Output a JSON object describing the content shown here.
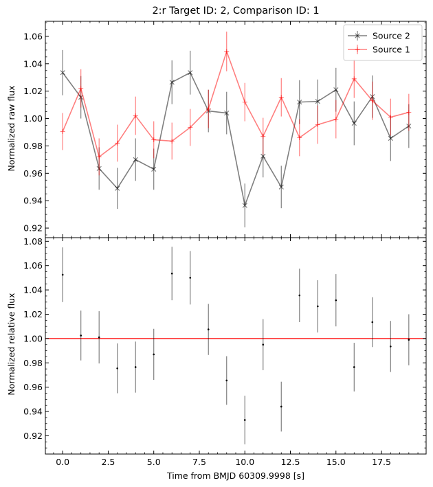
{
  "chart_data": {
    "type": "line",
    "title": "2:r Target ID: 2, Comparison ID: 1",
    "xlabel": "Time from BMJD 60309.9998 [s]",
    "xlim": [
      -0.95,
      19.95
    ],
    "x_ticks": [
      0.0,
      2.5,
      5.0,
      7.5,
      10.0,
      12.5,
      15.0,
      17.5
    ],
    "x_tick_labels": [
      "0.0",
      "2.5",
      "5.0",
      "7.5",
      "10.0",
      "12.5",
      "15.0",
      "17.5"
    ],
    "x": [
      0,
      1,
      2,
      3,
      4,
      5,
      6,
      7,
      8,
      9,
      10,
      11,
      12,
      13,
      14,
      15,
      16,
      17,
      18,
      19
    ],
    "panels": [
      {
        "ylabel": "Normalized raw flux",
        "ylim": [
          0.913,
          1.071
        ],
        "y_ticks": [
          0.92,
          0.94,
          0.96,
          0.98,
          1.0,
          1.02,
          1.04,
          1.06
        ],
        "y_tick_labels": [
          "0.92",
          "0.94",
          "0.96",
          "0.98",
          "1.00",
          "1.02",
          "1.04",
          "1.06"
        ],
        "legend_position": "top-right",
        "series": [
          {
            "name": "Source 2",
            "color": "#000000",
            "marker": "x",
            "values": [
              1.0335,
              1.0155,
              0.9635,
              0.949,
              0.97,
              0.963,
              1.0265,
              1.0335,
              1.0055,
              1.004,
              0.9365,
              0.9725,
              0.95,
              1.012,
              1.0125,
              1.021,
              0.9965,
              1.016,
              0.9855,
              0.9945
            ],
            "errors": [
              0.0165,
              0.0155,
              0.0155,
              0.015,
              0.0155,
              0.015,
              0.016,
              0.016,
              0.0155,
              0.0155,
              0.016,
              0.0155,
              0.0155,
              0.016,
              0.016,
              0.016,
              0.016,
              0.0155,
              0.0165,
              0.016
            ]
          },
          {
            "name": "Source 1",
            "color": "#ff0000",
            "marker": "+",
            "values": [
              0.9905,
              1.022,
              0.972,
              0.982,
              1.002,
              0.9845,
              0.9835,
              0.9935,
              1.007,
              1.049,
              1.012,
              0.987,
              1.0155,
              0.986,
              0.9955,
              0.9995,
              1.029,
              1.013,
              1.001,
              1.0045
            ],
            "errors": [
              0.0135,
              0.014,
              0.0135,
              0.0135,
              0.014,
              0.0135,
              0.0135,
              0.0135,
              0.014,
              0.0145,
              0.014,
              0.0135,
              0.014,
              0.0135,
              0.014,
              0.014,
              0.014,
              0.014,
              0.0135,
              0.0135
            ]
          }
        ]
      },
      {
        "ylabel": "Normalized relative flux",
        "ylim": [
          0.905,
          1.083
        ],
        "y_ticks": [
          0.92,
          0.94,
          0.96,
          0.98,
          1.0,
          1.02,
          1.04,
          1.06,
          1.08
        ],
        "y_tick_labels": [
          "0.92",
          "0.94",
          "0.96",
          "0.98",
          "1.00",
          "1.02",
          "1.04",
          "1.06",
          "1.08"
        ],
        "reference_line": {
          "y": 1.0,
          "color": "#ff0000"
        },
        "series": [
          {
            "color": "#000000",
            "marker": ".",
            "values": [
              1.0525,
              1.0025,
              1.001,
              0.9755,
              0.9765,
              0.987,
              1.0535,
              1.05,
              1.0075,
              0.9655,
              0.933,
              0.995,
              0.944,
              1.0355,
              1.0265,
              1.0315,
              0.9765,
              1.0135,
              0.9935,
              0.999
            ],
            "errors": [
              0.0225,
              0.0205,
              0.0215,
              0.0205,
              0.021,
              0.021,
              0.022,
              0.022,
              0.021,
              0.02,
              0.02,
              0.021,
              0.0205,
              0.022,
              0.0215,
              0.0215,
              0.02,
              0.0205,
              0.021,
              0.021
            ]
          }
        ]
      }
    ]
  }
}
